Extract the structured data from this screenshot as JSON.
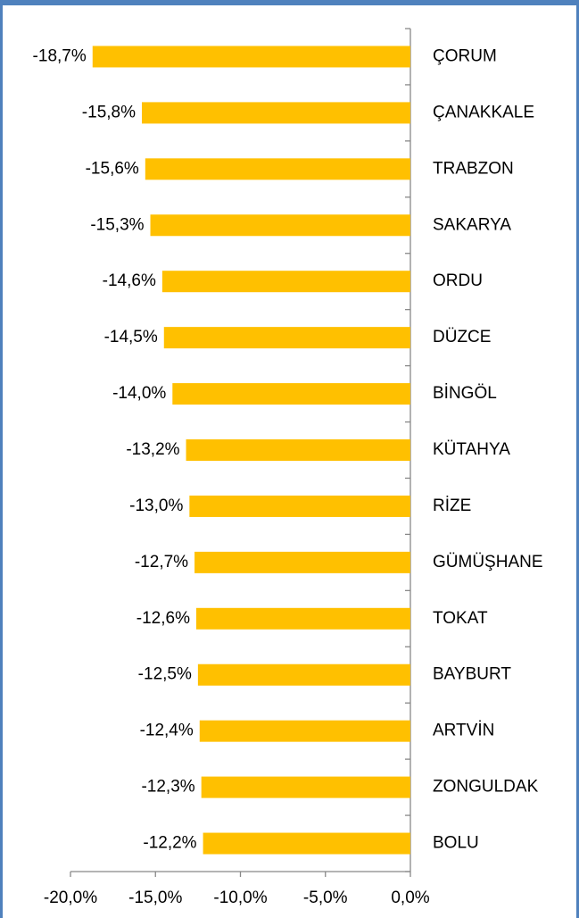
{
  "chart_data": {
    "type": "bar",
    "orientation": "horizontal",
    "categories": [
      "ÇORUM",
      "ÇANAKKALE",
      "TRABZON",
      "SAKARYA",
      "ORDU",
      "DÜZCE",
      "BİNGÖL",
      "KÜTAHYA",
      "RİZE",
      "GÜMÜŞHANE",
      "TOKAT",
      "BAYBURT",
      "ARTVİN",
      "ZONGULDAK",
      "BOLU"
    ],
    "values": [
      -18.7,
      -15.8,
      -15.6,
      -15.3,
      -14.6,
      -14.5,
      -14.0,
      -13.2,
      -13.0,
      -12.7,
      -12.6,
      -12.5,
      -12.4,
      -12.3,
      -12.2
    ],
    "value_labels": [
      "-18,7%",
      "-15,8%",
      "-15,6%",
      "-15,3%",
      "-14,6%",
      "-14,5%",
      "-14,0%",
      "-13,2%",
      "-13,0%",
      "-12,7%",
      "-12,6%",
      "-12,5%",
      "-12,4%",
      "-12,3%",
      "-12,2%"
    ],
    "color": "#ffc000",
    "xlim": [
      -20,
      0
    ],
    "xticks": [
      {
        "value": -20,
        "label": "-20,0%"
      },
      {
        "value": -15,
        "label": "-15,0%"
      },
      {
        "value": -10,
        "label": "-10,0%"
      },
      {
        "value": -5,
        "label": "-5,0%"
      },
      {
        "value": 0,
        "label": "0,0%"
      }
    ]
  }
}
